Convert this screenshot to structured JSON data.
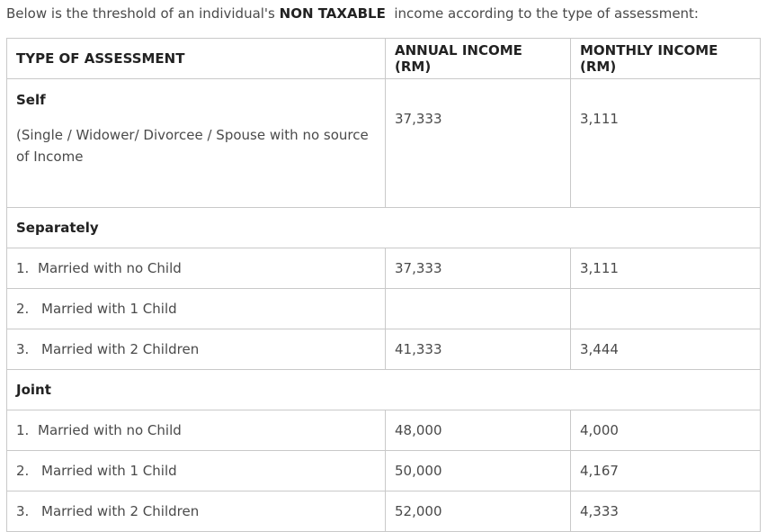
{
  "intro": {
    "prefix": "Below is the threshold of an individual's ",
    "bold": "NON TAXABLE",
    "suffix": "  income according to the type of assessment:"
  },
  "table": {
    "headers": [
      "TYPE OF ASSESSMENT",
      "ANNUAL INCOME (RM)",
      "MONTHLY INCOME (RM)"
    ],
    "self": {
      "title": "Self",
      "description": "(Single / Widower/ Divorcee / Spouse with no source of Income",
      "annual": "37,333",
      "monthly": "3,111"
    },
    "separately": {
      "title": "Separately",
      "rows": [
        {
          "num": "1.",
          "label": "Married with no Child",
          "annual": "37,333",
          "monthly": "3,111"
        },
        {
          "num": "2.",
          "label": "Married with 1 Child",
          "annual": "",
          "monthly": ""
        },
        {
          "num": "3.",
          "label": "Married with 2 Children",
          "annual": "41,333",
          "monthly": "3,444"
        }
      ]
    },
    "joint": {
      "title": "Joint",
      "rows": [
        {
          "num": "1.",
          "label": "Married with no Child",
          "annual": "48,000",
          "monthly": "4,000"
        },
        {
          "num": "2.",
          "label": "Married with 1 Child",
          "annual": "50,000",
          "monthly": "4,167"
        },
        {
          "num": "3.",
          "label": "Married with 2 Children",
          "annual": "52,000",
          "monthly": "4,333"
        }
      ]
    }
  }
}
